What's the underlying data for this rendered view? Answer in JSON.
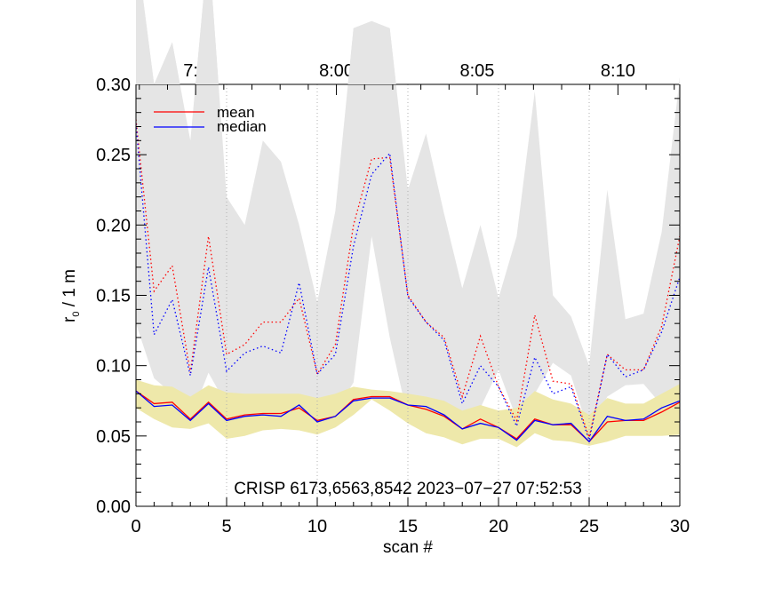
{
  "chart_data": {
    "type": "line",
    "title": "",
    "xlabel": "scan #",
    "ylabel": "r₀ / 1 m",
    "ylabel_main": "r",
    "ylabel_sub": "0",
    "ylabel_rest": " / 1 m",
    "xlim": [
      0,
      30
    ],
    "ylim": [
      0.0,
      0.3
    ],
    "x_ticks": [
      0,
      5,
      10,
      15,
      20,
      25,
      30
    ],
    "x_tick_labels": [
      "0",
      "5",
      "10",
      "15",
      "20",
      "25",
      "30"
    ],
    "y_ticks": [
      0.0,
      0.05,
      0.1,
      0.15,
      0.2,
      0.25,
      0.3
    ],
    "y_tick_labels": [
      "0.00",
      "0.05",
      "0.10",
      "0.15",
      "0.20",
      "0.25",
      "0.30"
    ],
    "top_axis": {
      "labels": [
        "7:55",
        "8:00",
        "8:05",
        "8:10"
      ],
      "visible_labels": [
        "7:5",
        "8:00",
        "8:05",
        "8:10"
      ],
      "minutes": [
        55,
        60,
        65,
        70
      ],
      "minute_at_scan0": 52.88,
      "scans_per_minute": 1.553
    },
    "annotation": "CRISP 6173,6563,8542 2023−07−27 07:52:53",
    "legend": {
      "placement": "top-left",
      "entries": [
        {
          "label": "mean",
          "color": "#ff0000"
        },
        {
          "label": "median",
          "color": "#0000ff"
        }
      ]
    },
    "grid": "vertical dotted at x ticks",
    "colors": {
      "mean": "#ff0000",
      "median": "#0000ff",
      "grey_band": "#e5e5e5",
      "yellow_band": "#eee8aa",
      "grid": "#b0b0b0"
    },
    "x": [
      0,
      1,
      2,
      3,
      4,
      5,
      6,
      7,
      8,
      9,
      10,
      11,
      12,
      13,
      14,
      15,
      16,
      17,
      18,
      19,
      20,
      21,
      22,
      23,
      24,
      25,
      26,
      27,
      28,
      29,
      30
    ],
    "series": [
      {
        "name": "mean (upper, dotted)",
        "style": "dotted",
        "color": "#ff0000",
        "values": [
          0.275,
          0.153,
          0.171,
          0.095,
          0.192,
          0.108,
          0.115,
          0.131,
          0.131,
          0.148,
          0.094,
          0.115,
          0.2,
          0.247,
          0.248,
          0.15,
          0.131,
          0.12,
          0.078,
          0.121,
          0.085,
          0.061,
          0.136,
          0.089,
          0.087,
          0.049,
          0.108,
          0.097,
          0.097,
          0.128,
          0.192
        ]
      },
      {
        "name": "median (upper, dotted)",
        "style": "dotted",
        "color": "#0000ff",
        "values": [
          0.272,
          0.122,
          0.147,
          0.093,
          0.17,
          0.096,
          0.109,
          0.114,
          0.109,
          0.159,
          0.094,
          0.108,
          0.185,
          0.236,
          0.251,
          0.149,
          0.131,
          0.118,
          0.073,
          0.1,
          0.085,
          0.057,
          0.106,
          0.08,
          0.085,
          0.047,
          0.108,
          0.092,
          0.097,
          0.124,
          0.163
        ]
      },
      {
        "name": "mean (lower, solid)",
        "style": "solid",
        "color": "#ff0000",
        "values": [
          0.082,
          0.073,
          0.074,
          0.062,
          0.074,
          0.062,
          0.065,
          0.066,
          0.066,
          0.07,
          0.061,
          0.064,
          0.076,
          0.078,
          0.078,
          0.072,
          0.069,
          0.064,
          0.055,
          0.062,
          0.056,
          0.048,
          0.062,
          0.058,
          0.058,
          0.046,
          0.06,
          0.061,
          0.061,
          0.067,
          0.074
        ]
      },
      {
        "name": "median (lower, solid)",
        "style": "solid",
        "color": "#0000ff",
        "values": [
          0.082,
          0.071,
          0.072,
          0.061,
          0.073,
          0.061,
          0.064,
          0.065,
          0.064,
          0.072,
          0.06,
          0.064,
          0.075,
          0.077,
          0.077,
          0.072,
          0.071,
          0.065,
          0.055,
          0.059,
          0.056,
          0.047,
          0.061,
          0.058,
          0.059,
          0.046,
          0.064,
          0.061,
          0.062,
          0.07,
          0.075
        ]
      }
    ],
    "bands": [
      {
        "name": "upper spread (grey)",
        "color": "#e5e5e5",
        "upper": [
          0.4,
          0.3,
          0.33,
          0.26,
          0.4,
          0.22,
          0.2,
          0.26,
          0.245,
          0.2,
          0.145,
          0.21,
          0.34,
          0.345,
          0.34,
          0.225,
          0.265,
          0.208,
          0.155,
          0.2,
          0.148,
          0.192,
          0.295,
          0.15,
          0.135,
          0.1,
          0.225,
          0.133,
          0.137,
          0.195,
          0.305
        ],
        "lower": [
          0.13,
          0.091,
          0.08,
          0.062,
          0.095,
          0.072,
          0.068,
          0.07,
          0.067,
          0.067,
          0.057,
          0.068,
          0.088,
          0.192,
          0.12,
          0.063,
          0.067,
          0.065,
          0.063,
          0.07,
          0.097,
          0.062,
          0.08,
          0.102,
          0.093,
          0.052,
          0.078,
          0.086,
          0.087,
          0.072,
          0.078
        ]
      },
      {
        "name": "lower spread (yellow)",
        "color": "#eee8aa",
        "upper": [
          0.09,
          0.086,
          0.085,
          0.078,
          0.086,
          0.081,
          0.08,
          0.08,
          0.08,
          0.08,
          0.077,
          0.08,
          0.085,
          0.083,
          0.082,
          0.08,
          0.078,
          0.075,
          0.068,
          0.072,
          0.068,
          0.07,
          0.082,
          0.076,
          0.073,
          0.065,
          0.077,
          0.073,
          0.073,
          0.08,
          0.087
        ],
        "lower": [
          0.07,
          0.062,
          0.056,
          0.055,
          0.059,
          0.048,
          0.05,
          0.054,
          0.055,
          0.054,
          0.051,
          0.056,
          0.065,
          0.076,
          0.068,
          0.059,
          0.052,
          0.049,
          0.044,
          0.048,
          0.048,
          0.042,
          0.052,
          0.047,
          0.046,
          0.043,
          0.046,
          0.05,
          0.05,
          0.05,
          0.051
        ]
      }
    ]
  }
}
